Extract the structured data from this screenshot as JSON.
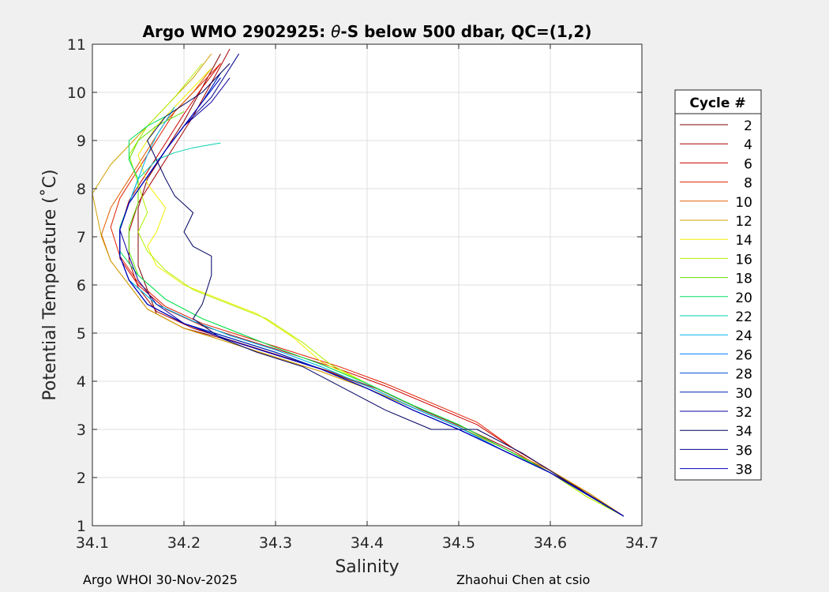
{
  "chart_data": {
    "type": "line",
    "title_prefix": "Argo WMO 2902925: ",
    "title_theta": "θ",
    "title_suffix": "-S below 500 dbar,  QC=(1,2)",
    "xlabel": "Salinity",
    "ylabel": "Potential Temperature (˚C)",
    "xlim": [
      34.1,
      34.7
    ],
    "ylim": [
      1,
      11
    ],
    "xticks": [
      "34.1",
      "34.2",
      "34.3",
      "34.4",
      "34.5",
      "34.6",
      "34.7"
    ],
    "yticks": [
      "1",
      "2",
      "3",
      "4",
      "5",
      "6",
      "7",
      "8",
      "9",
      "10",
      "11"
    ],
    "grid": true,
    "legend_title": "Cycle #",
    "legend_placement": "outside-right",
    "series": [
      {
        "name": "2",
        "color": "#800000",
        "s": [
          34.68,
          34.64,
          34.6,
          34.55,
          34.5,
          34.45,
          34.4,
          34.35,
          34.3,
          34.25,
          34.2,
          34.17,
          34.16,
          34.15,
          34.15,
          34.15,
          34.16,
          34.18,
          34.2,
          34.22,
          34.24
        ],
        "t": [
          1.2,
          1.7,
          2.1,
          2.6,
          3.05,
          3.45,
          3.9,
          4.25,
          4.55,
          4.85,
          5.1,
          5.4,
          5.9,
          6.4,
          7.0,
          7.6,
          8.2,
          8.8,
          9.4,
          10.1,
          10.8
        ]
      },
      {
        "name": "4",
        "color": "#a80000",
        "s": [
          34.68,
          34.64,
          34.6,
          34.56,
          34.51,
          34.46,
          34.41,
          34.36,
          34.31,
          34.26,
          34.21,
          34.17,
          34.15,
          34.14,
          34.14,
          34.15,
          34.17,
          34.19,
          34.21,
          34.23,
          34.25
        ],
        "t": [
          1.2,
          1.7,
          2.1,
          2.55,
          3.0,
          3.4,
          3.85,
          4.2,
          4.5,
          4.8,
          5.1,
          5.45,
          5.95,
          6.5,
          7.1,
          7.7,
          8.3,
          8.9,
          9.5,
          10.2,
          10.9
        ]
      },
      {
        "name": "6",
        "color": "#cc0000",
        "s": [
          34.68,
          34.64,
          34.6,
          34.56,
          34.52,
          34.47,
          34.42,
          34.37,
          34.32,
          34.27,
          34.22,
          34.18,
          34.15,
          34.13,
          34.13,
          34.14,
          34.16,
          34.18,
          34.2,
          34.22,
          34.24
        ],
        "t": [
          1.2,
          1.7,
          2.15,
          2.6,
          3.1,
          3.5,
          3.9,
          4.25,
          4.55,
          4.85,
          5.15,
          5.5,
          6.0,
          6.55,
          7.15,
          7.75,
          8.35,
          8.95,
          9.55,
          10.1,
          10.6
        ]
      },
      {
        "name": "8",
        "color": "#e02000",
        "s": [
          34.68,
          34.64,
          34.6,
          34.56,
          34.52,
          34.47,
          34.42,
          34.37,
          34.32,
          34.27,
          34.22,
          34.18,
          34.15,
          34.13,
          34.12,
          34.13,
          34.15,
          34.17,
          34.19,
          34.22,
          34.24
        ],
        "t": [
          1.2,
          1.7,
          2.15,
          2.6,
          3.15,
          3.55,
          3.95,
          4.3,
          4.6,
          4.9,
          5.2,
          5.55,
          6.05,
          6.6,
          7.2,
          7.8,
          8.4,
          9.0,
          9.6,
          10.2,
          10.6
        ]
      },
      {
        "name": "10",
        "color": "#e06000",
        "s": [
          34.68,
          34.64,
          34.6,
          34.55,
          34.5,
          34.45,
          34.4,
          34.35,
          34.3,
          34.25,
          34.2,
          34.16,
          34.14,
          34.12,
          34.11,
          34.12,
          34.14,
          34.16,
          34.18,
          34.21,
          34.23
        ],
        "t": [
          1.2,
          1.7,
          2.15,
          2.6,
          3.05,
          3.45,
          3.85,
          4.2,
          4.5,
          4.8,
          5.1,
          5.5,
          6.0,
          6.5,
          7.05,
          7.6,
          8.2,
          8.8,
          9.4,
          10.0,
          10.5
        ]
      },
      {
        "name": "12",
        "color": "#d0a000",
        "s": [
          34.68,
          34.64,
          34.6,
          34.55,
          34.5,
          34.45,
          34.4,
          34.35,
          34.3,
          34.25,
          34.2,
          34.16,
          34.14,
          34.12,
          34.11,
          34.1,
          34.12,
          34.15,
          34.18,
          34.21,
          34.23
        ],
        "t": [
          1.2,
          1.7,
          2.15,
          2.6,
          3.05,
          3.45,
          3.85,
          4.2,
          4.5,
          4.8,
          5.1,
          5.5,
          6.0,
          6.5,
          7.0,
          7.9,
          8.5,
          9.1,
          9.7,
          10.3,
          10.8
        ]
      },
      {
        "name": "14",
        "color": "#f0f000",
        "s": [
          34.68,
          34.64,
          34.6,
          34.55,
          34.5,
          34.45,
          34.4,
          34.35,
          34.32,
          34.28,
          34.24,
          34.2,
          34.17,
          34.16,
          34.17,
          34.18,
          34.16,
          34.15,
          34.17,
          34.2,
          34.23
        ],
        "t": [
          1.2,
          1.6,
          2.1,
          2.6,
          3.1,
          3.5,
          3.95,
          4.4,
          4.9,
          5.4,
          5.7,
          6.0,
          6.4,
          6.8,
          7.1,
          7.6,
          8.1,
          8.7,
          9.3,
          9.9,
          10.5
        ]
      },
      {
        "name": "16",
        "color": "#b0f000",
        "s": [
          34.68,
          34.64,
          34.6,
          34.55,
          34.5,
          34.45,
          34.4,
          34.36,
          34.33,
          34.29,
          34.25,
          34.21,
          34.18,
          34.16,
          34.15,
          34.16,
          34.15,
          34.14,
          34.16,
          34.19,
          34.22
        ],
        "t": [
          1.2,
          1.6,
          2.1,
          2.6,
          3.1,
          3.5,
          3.95,
          4.35,
          4.8,
          5.3,
          5.6,
          5.9,
          6.3,
          6.7,
          7.1,
          7.5,
          8.1,
          8.7,
          9.3,
          9.9,
          10.6
        ]
      },
      {
        "name": "18",
        "color": "#60e000",
        "s": [
          34.68,
          34.64,
          34.6,
          34.55,
          34.5,
          34.45,
          34.4,
          34.35,
          34.3,
          34.26,
          34.22,
          34.18,
          34.15,
          34.14,
          34.14,
          34.15,
          34.15,
          34.14,
          34.15,
          34.17,
          34.2
        ],
        "t": [
          1.2,
          1.65,
          2.1,
          2.6,
          3.1,
          3.5,
          3.95,
          4.35,
          4.7,
          5.0,
          5.3,
          5.7,
          6.2,
          6.7,
          7.2,
          7.7,
          8.2,
          8.6,
          9.0,
          9.3,
          9.6
        ]
      },
      {
        "name": "20",
        "color": "#00e060",
        "s": [
          34.68,
          34.64,
          34.6,
          34.55,
          34.5,
          34.45,
          34.4,
          34.35,
          34.3,
          34.26,
          34.22,
          34.18,
          34.15,
          34.13,
          34.13,
          34.14,
          34.15,
          34.14,
          34.14,
          34.16,
          34.18
        ],
        "t": [
          1.2,
          1.65,
          2.1,
          2.6,
          3.1,
          3.5,
          3.95,
          4.35,
          4.7,
          5.0,
          5.3,
          5.7,
          6.2,
          6.7,
          7.2,
          7.7,
          8.2,
          8.6,
          9.0,
          9.3,
          9.5
        ]
      },
      {
        "name": "22",
        "color": "#00d0b0",
        "s": [
          34.68,
          34.64,
          34.6,
          34.55,
          34.5,
          34.45,
          34.4,
          34.35,
          34.3,
          34.25,
          34.21,
          34.17,
          34.14,
          34.13,
          34.13,
          34.14,
          34.15,
          34.17,
          34.19,
          34.21,
          34.24
        ],
        "t": [
          1.2,
          1.65,
          2.1,
          2.55,
          3.05,
          3.45,
          3.9,
          4.3,
          4.65,
          4.95,
          5.25,
          5.6,
          6.1,
          6.6,
          7.15,
          7.7,
          8.2,
          8.6,
          8.75,
          8.85,
          8.95
        ]
      },
      {
        "name": "24",
        "color": "#00b0f0",
        "s": [
          34.68,
          34.64,
          34.6,
          34.55,
          34.5,
          34.45,
          34.4,
          34.35,
          34.3,
          34.25,
          34.21,
          34.17,
          34.14,
          34.13,
          34.13,
          34.14,
          34.15,
          34.16,
          34.17,
          34.18,
          34.19
        ],
        "t": [
          1.2,
          1.65,
          2.1,
          2.55,
          3.05,
          3.45,
          3.9,
          4.3,
          4.65,
          4.95,
          5.25,
          5.6,
          6.1,
          6.6,
          7.15,
          7.7,
          8.2,
          8.7,
          9.1,
          9.4,
          9.7
        ]
      },
      {
        "name": "26",
        "color": "#0080ff",
        "s": [
          34.68,
          34.64,
          34.6,
          34.55,
          34.5,
          34.45,
          34.4,
          34.35,
          34.3,
          34.25,
          34.2,
          34.16,
          34.14,
          34.13,
          34.13,
          34.14,
          34.16,
          34.18,
          34.2,
          34.22,
          34.24
        ],
        "t": [
          1.2,
          1.65,
          2.1,
          2.55,
          3.0,
          3.4,
          3.85,
          4.25,
          4.6,
          4.9,
          5.2,
          5.6,
          6.1,
          6.6,
          7.15,
          7.7,
          8.25,
          8.8,
          9.3,
          9.8,
          10.3
        ]
      },
      {
        "name": "28",
        "color": "#0050d0",
        "s": [
          34.68,
          34.64,
          34.6,
          34.55,
          34.5,
          34.45,
          34.4,
          34.35,
          34.3,
          34.25,
          34.2,
          34.16,
          34.14,
          34.13,
          34.13,
          34.14,
          34.16,
          34.18,
          34.2,
          34.22,
          34.24
        ],
        "t": [
          1.2,
          1.65,
          2.1,
          2.55,
          3.0,
          3.4,
          3.85,
          4.25,
          4.6,
          4.9,
          5.2,
          5.6,
          6.1,
          6.6,
          7.15,
          7.7,
          8.25,
          8.8,
          9.3,
          9.8,
          10.4
        ]
      },
      {
        "name": "30",
        "color": "#0020b0",
        "s": [
          34.68,
          34.64,
          34.6,
          34.55,
          34.5,
          34.45,
          34.4,
          34.35,
          34.3,
          34.25,
          34.2,
          34.16,
          34.14,
          34.13,
          34.13,
          34.14,
          34.16,
          34.18,
          34.2,
          34.22,
          34.24
        ],
        "t": [
          1.2,
          1.65,
          2.1,
          2.55,
          3.0,
          3.4,
          3.85,
          4.25,
          4.6,
          4.9,
          5.2,
          5.6,
          6.1,
          6.6,
          7.15,
          7.7,
          8.25,
          8.8,
          9.3,
          9.8,
          10.4
        ]
      },
      {
        "name": "32",
        "color": "#1000a0",
        "s": [
          34.68,
          34.64,
          34.6,
          34.55,
          34.5,
          34.45,
          34.4,
          34.35,
          34.3,
          34.25,
          34.2,
          34.17,
          34.15,
          34.14,
          34.13,
          34.14,
          34.16,
          34.18,
          34.2,
          34.23,
          34.25
        ],
        "t": [
          1.2,
          1.65,
          2.1,
          2.55,
          3.0,
          3.4,
          3.85,
          4.25,
          4.55,
          4.85,
          5.2,
          5.6,
          6.1,
          6.6,
          7.15,
          7.7,
          8.25,
          8.8,
          9.3,
          9.8,
          10.3
        ]
      },
      {
        "name": "34",
        "color": "#000060",
        "s": [
          34.68,
          34.62,
          34.57,
          34.52,
          34.47,
          34.42,
          34.38,
          34.33,
          34.28,
          34.24,
          34.21,
          34.22,
          34.23,
          34.23,
          34.21,
          34.2,
          34.21,
          34.19,
          34.18,
          34.17,
          34.16,
          34.18,
          34.22,
          34.25
        ],
        "t": [
          1.2,
          1.9,
          2.5,
          3.0,
          3.0,
          3.4,
          3.8,
          4.3,
          4.6,
          4.9,
          5.3,
          5.6,
          6.2,
          6.6,
          6.8,
          7.1,
          7.5,
          7.85,
          8.2,
          8.6,
          9.0,
          9.5,
          10.0,
          10.6
        ]
      },
      {
        "name": "36",
        "color": "#000090",
        "s": [
          34.68,
          34.64,
          34.6,
          34.55,
          34.5,
          34.45,
          34.4,
          34.35,
          34.3,
          34.25,
          34.2,
          34.16,
          34.14,
          34.13,
          34.13,
          34.14,
          34.16,
          34.18,
          34.2,
          34.23,
          34.26
        ],
        "t": [
          1.2,
          1.65,
          2.1,
          2.55,
          3.0,
          3.4,
          3.85,
          4.25,
          4.55,
          4.85,
          5.2,
          5.6,
          6.1,
          6.6,
          7.15,
          7.7,
          8.25,
          8.8,
          9.3,
          9.9,
          10.8
        ]
      },
      {
        "name": "38",
        "color": "#0000c0",
        "s": [
          34.68,
          34.64,
          34.6,
          34.55,
          34.5,
          34.45,
          34.4,
          34.35,
          34.3,
          34.25,
          34.2,
          34.16,
          34.14,
          34.13,
          34.13,
          34.14,
          34.16,
          34.18,
          34.2,
          34.22,
          34.24
        ],
        "t": [
          1.2,
          1.65,
          2.1,
          2.55,
          3.0,
          3.4,
          3.85,
          4.25,
          4.55,
          4.85,
          5.2,
          5.6,
          6.1,
          6.6,
          7.15,
          7.7,
          8.25,
          8.8,
          9.3,
          9.8,
          10.3
        ]
      }
    ]
  },
  "footer": {
    "left": "Argo WHOI 30-Nov-2025",
    "right": "Zhaohui Chen at csio"
  }
}
